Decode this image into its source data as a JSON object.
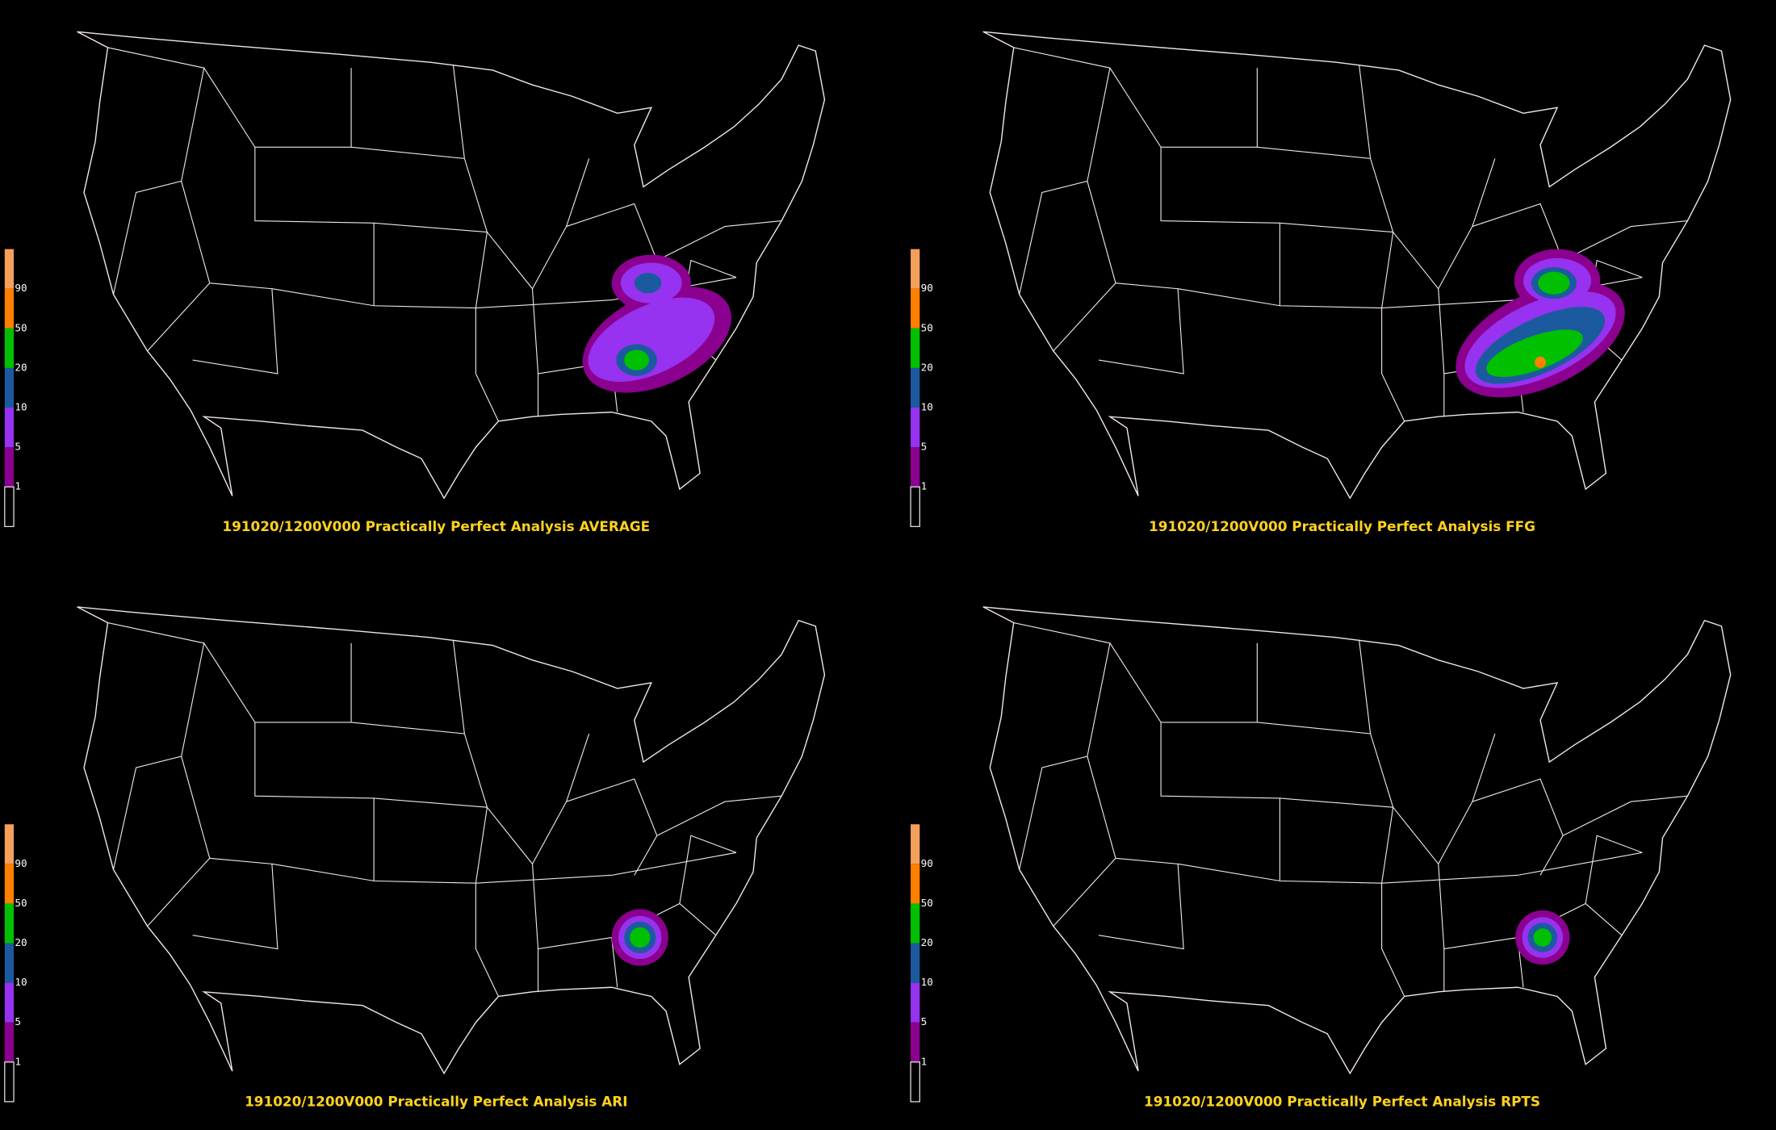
{
  "panels": [
    {
      "title": "191020/1200V000 Practically Perfect Analysis AVERAGE"
    },
    {
      "title": "191020/1200V000 Practically Perfect Analysis FFG"
    },
    {
      "title": "191020/1200V000 Practically Perfect Analysis ARI"
    },
    {
      "title": "191020/1200V000 Practically Perfect Analysis RPTS"
    }
  ],
  "colorbar": {
    "levels": [
      90,
      50,
      20,
      10,
      5,
      1
    ],
    "colors": [
      "#f4a05a",
      "#ff7f00",
      "#00c000",
      "#1c5aa0",
      "#9632f0",
      "#8c0090",
      "#000000"
    ]
  }
}
